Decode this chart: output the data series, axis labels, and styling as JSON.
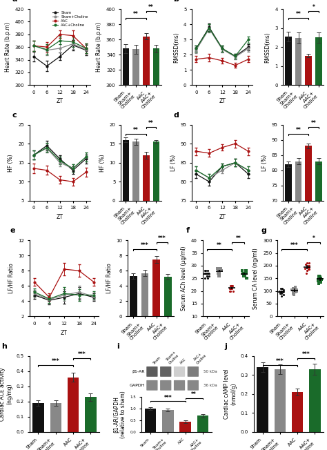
{
  "colors": {
    "sham": "#111111",
    "sham_choline": "#888888",
    "aac": "#aa1111",
    "aac_choline": "#1a6b2a"
  },
  "legend_labels": [
    "Sham",
    "Sham+Choline",
    "AAC",
    "AAC+Choline"
  ],
  "zt_ticks": [
    0,
    6,
    12,
    18,
    24
  ],
  "bar_categories": [
    "Sham",
    "Sham+\nCholine",
    "AAC",
    "AAC+\nCholine"
  ],
  "panel_a_line": {
    "sham": [
      345,
      330,
      345,
      363,
      355
    ],
    "sham_choline": [
      362,
      355,
      358,
      365,
      356
    ],
    "aac": [
      362,
      360,
      380,
      378,
      358
    ],
    "aac_choline": [
      362,
      356,
      370,
      368,
      358
    ],
    "yerr": [
      8,
      8,
      6,
      8,
      8
    ]
  },
  "panel_a_bar": {
    "values": [
      348,
      347,
      364,
      348
    ],
    "errors": [
      6,
      6,
      4,
      5
    ],
    "ylabel": "Heart Rate (b.p.m)",
    "ylim": [
      300,
      400
    ],
    "yticks": [
      300,
      320,
      340,
      360,
      380,
      400
    ],
    "sig_pairs": [
      [
        0,
        2,
        "**"
      ],
      [
        2,
        3,
        "**"
      ]
    ]
  },
  "panel_a_line_ylabel": "Heart Rate (b.p.m)",
  "panel_a_line_ylim": [
    300,
    420
  ],
  "panel_a_line_yticks": [
    300,
    320,
    340,
    360,
    380,
    400,
    420
  ],
  "panel_b_line": {
    "sham": [
      2.4,
      3.8,
      2.4,
      1.9,
      2.5
    ],
    "sham_choline": [
      2.3,
      3.7,
      2.35,
      1.85,
      2.4
    ],
    "aac": [
      1.7,
      1.8,
      1.6,
      1.3,
      1.7
    ],
    "aac_choline": [
      2.4,
      3.75,
      2.4,
      1.9,
      3.0
    ],
    "yerr": [
      0.2,
      0.25,
      0.2,
      0.15,
      0.2
    ]
  },
  "panel_b_bar": {
    "values": [
      2.55,
      2.48,
      1.55,
      2.5
    ],
    "errors": [
      0.25,
      0.28,
      0.1,
      0.28
    ],
    "ylabel": "RMSSD(ms)",
    "ylim": [
      0,
      4
    ],
    "yticks": [
      0,
      1,
      2,
      3,
      4
    ],
    "sig_pairs": [
      [
        0,
        2,
        "**"
      ],
      [
        2,
        3,
        "*"
      ]
    ]
  },
  "panel_b_line_ylabel": "RMSSD(ms)",
  "panel_b_line_ylim": [
    0,
    5
  ],
  "panel_b_line_yticks": [
    0,
    1,
    2,
    3,
    4,
    5
  ],
  "panel_c_line": {
    "sham": [
      17,
      19.5,
      16,
      13,
      16
    ],
    "sham_choline": [
      17,
      18.8,
      15,
      13.5,
      16.5
    ],
    "aac": [
      13.5,
      13,
      10.5,
      10,
      12.5
    ],
    "aac_choline": [
      17,
      19,
      15.5,
      13.5,
      16.5
    ],
    "yerr": [
      1.2,
      1.2,
      1.0,
      1.0,
      1.2
    ]
  },
  "panel_c_bar": {
    "values": [
      16.0,
      15.5,
      12.0,
      15.5
    ],
    "errors": [
      0.7,
      0.8,
      0.9,
      0.5
    ],
    "ylabel": "HF (%)",
    "ylim": [
      0,
      20
    ],
    "yticks": [
      0,
      5,
      10,
      15,
      20
    ],
    "sig_pairs": [
      [
        0,
        2,
        "**"
      ],
      [
        2,
        3,
        "**"
      ]
    ]
  },
  "panel_c_line_ylabel": "HF (%)",
  "panel_c_line_ylim": [
    5,
    25
  ],
  "panel_c_line_yticks": [
    5,
    10,
    15,
    20,
    25
  ],
  "panel_d_line": {
    "sham": [
      82,
      80,
      84,
      85,
      82
    ],
    "sham_choline": [
      83,
      81,
      83,
      85,
      83
    ],
    "aac": [
      88,
      87.5,
      89,
      90,
      88
    ],
    "aac_choline": [
      83,
      81,
      84,
      85,
      83
    ],
    "yerr": [
      1.0,
      1.0,
      0.8,
      1.0,
      1.0
    ]
  },
  "panel_d_bar": {
    "values": [
      82,
      83,
      88,
      83
    ],
    "errors": [
      1.0,
      1.0,
      0.8,
      1.0
    ],
    "ylabel": "LF (%)",
    "ylim": [
      70,
      95
    ],
    "yticks": [
      70,
      75,
      80,
      85,
      90,
      95
    ],
    "sig_pairs": [
      [
        0,
        2,
        "**"
      ],
      [
        2,
        3,
        "**"
      ]
    ]
  },
  "panel_d_line_ylabel": "LF (%)",
  "panel_d_line_ylim": [
    75,
    95
  ],
  "panel_d_line_yticks": [
    75,
    80,
    85,
    90,
    95
  ],
  "panel_e_line": {
    "sham": [
      4.8,
      4.1,
      4.5,
      5.0,
      4.5
    ],
    "sham_choline": [
      5.0,
      4.2,
      4.8,
      5.2,
      4.6
    ],
    "aac": [
      6.5,
      4.5,
      8.2,
      8.0,
      6.5
    ],
    "aac_choline": [
      5.2,
      4.3,
      5.0,
      4.8,
      4.8
    ],
    "yerr": [
      0.5,
      0.5,
      0.8,
      0.8,
      0.5
    ]
  },
  "panel_e_bar": {
    "values": [
      5.3,
      5.7,
      7.5,
      5.2
    ],
    "errors": [
      0.35,
      0.38,
      0.45,
      0.35
    ],
    "ylabel": "LF/HF Ratio",
    "ylim": [
      0,
      10
    ],
    "yticks": [
      0,
      2,
      4,
      6,
      8,
      10
    ],
    "sig_pairs": [
      [
        0,
        2,
        "***"
      ],
      [
        2,
        3,
        "***"
      ]
    ]
  },
  "panel_e_line_ylabel": "LF/HF Ratio",
  "panel_e_line_ylim": [
    2,
    12
  ],
  "panel_e_line_yticks": [
    2,
    4,
    6,
    8,
    10,
    12
  ],
  "panel_f": {
    "ylabel": "Serum ACh level (μg/ml)",
    "ylim": [
      10,
      40
    ],
    "yticks": [
      10,
      15,
      20,
      25,
      30,
      35,
      40
    ],
    "scatter": {
      "sham": [
        25,
        26,
        27,
        28,
        27,
        26,
        28,
        27,
        26,
        25,
        27,
        28
      ],
      "sham_choline": [
        26,
        27,
        28,
        29,
        28,
        27,
        29,
        28,
        27,
        26,
        28,
        29
      ],
      "aac": [
        20,
        21,
        22,
        21,
        22,
        20,
        21,
        22,
        21,
        20,
        22,
        21
      ],
      "aac_choline": [
        25,
        26,
        27,
        28,
        27,
        28,
        26,
        27,
        28,
        27,
        26,
        25
      ]
    },
    "means": [
      26.8,
      27.8,
      21.2,
      26.8
    ],
    "sems": [
      0.4,
      0.4,
      0.4,
      0.5
    ],
    "sig_pairs": [
      [
        0,
        2,
        "**"
      ],
      [
        2,
        3,
        "**"
      ]
    ]
  },
  "panel_g": {
    "ylabel": "Serum CA level (ng/ml)",
    "ylim": [
      0,
      300
    ],
    "yticks": [
      0,
      50,
      100,
      150,
      200,
      250,
      300
    ],
    "scatter": {
      "sham": [
        80,
        90,
        100,
        110,
        95,
        105,
        85,
        100,
        90,
        110,
        95,
        100
      ],
      "sham_choline": [
        85,
        95,
        105,
        115,
        100,
        110,
        90,
        105,
        95,
        115,
        100,
        105
      ],
      "aac": [
        170,
        190,
        210,
        200,
        185,
        195,
        205,
        180,
        195,
        210,
        185,
        200
      ],
      "aac_choline": [
        130,
        140,
        150,
        160,
        145,
        155,
        135,
        150,
        145,
        160,
        140,
        150
      ]
    },
    "means": [
      97,
      103,
      194,
      147
    ],
    "sems": [
      6,
      6,
      8,
      6
    ],
    "sig_pairs": [
      [
        0,
        2,
        "***"
      ],
      [
        2,
        3,
        "*"
      ]
    ]
  },
  "panel_h": {
    "ylabel": "Cardiac ACE activity\n(ng/mg)",
    "ylim": [
      0.0,
      0.5
    ],
    "yticks": [
      0.0,
      0.1,
      0.2,
      0.3,
      0.4,
      0.5
    ],
    "values": [
      0.19,
      0.19,
      0.36,
      0.23
    ],
    "errors": [
      0.02,
      0.02,
      0.03,
      0.025
    ],
    "sig_pairs": [
      [
        0,
        2,
        "***"
      ],
      [
        2,
        3,
        "***"
      ]
    ]
  },
  "panel_i_bar": {
    "ylabel": "β1-AR/GAPDH\n(relative to sham)",
    "ylim": [
      0.0,
      1.5
    ],
    "yticks": [
      0.0,
      0.5,
      1.0,
      1.5
    ],
    "values": [
      1.0,
      0.95,
      0.45,
      0.7
    ],
    "errors": [
      0.05,
      0.06,
      0.06,
      0.08
    ],
    "sig_pairs": [
      [
        0,
        2,
        "***"
      ],
      [
        2,
        3,
        "**"
      ]
    ]
  },
  "panel_i_wb": {
    "b1ar_intensities": [
      0.75,
      0.72,
      0.22,
      0.6
    ],
    "gapdh_intensities": [
      0.55,
      0.55,
      0.55,
      0.55
    ],
    "col_labels": [
      "Sham",
      "Sham+\nCholine",
      "AAC",
      "AAC+\nCholine"
    ],
    "b1ar_kda": "50 kDa",
    "gapdh_kda": "36 kDa"
  },
  "panel_j": {
    "ylabel": "Cardiac cAMP level\n(nmol/g)",
    "ylim": [
      0.0,
      0.4
    ],
    "yticks": [
      0.0,
      0.1,
      0.2,
      0.3,
      0.4
    ],
    "values": [
      0.34,
      0.33,
      0.21,
      0.33
    ],
    "errors": [
      0.025,
      0.025,
      0.018,
      0.028
    ],
    "sig_pairs": [
      [
        0,
        2,
        "***"
      ],
      [
        2,
        3,
        "***"
      ]
    ]
  }
}
